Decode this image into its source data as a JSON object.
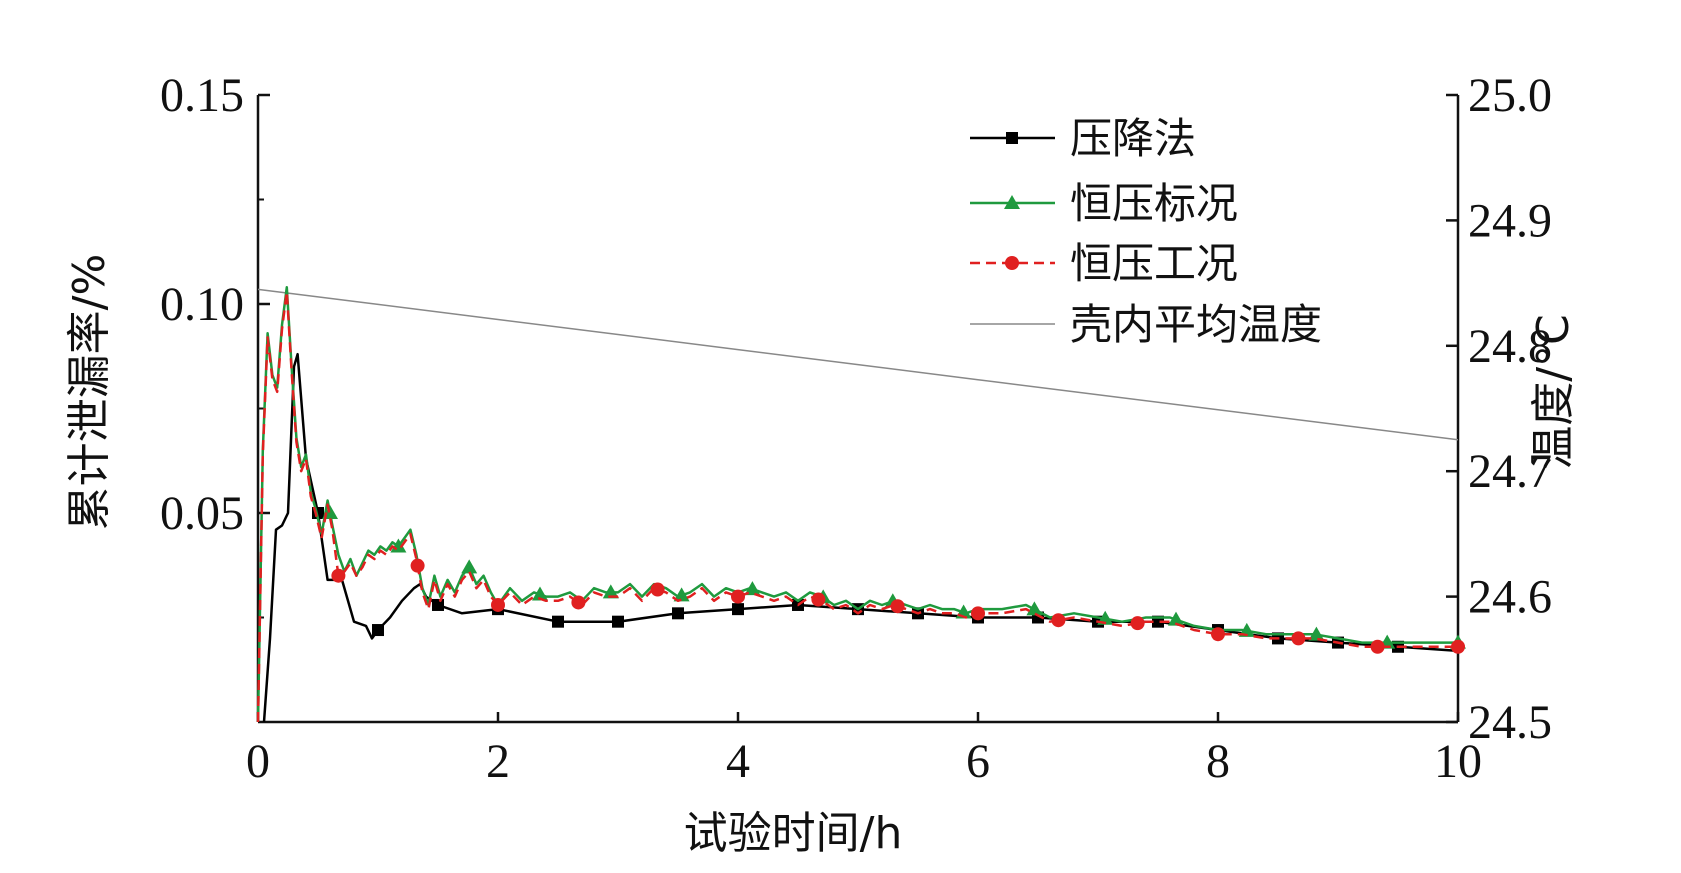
{
  "chart_data": {
    "type": "line",
    "xlabel": "试验时间/h",
    "ylabel_left": "累计泄漏率/%",
    "ylabel_right": "温度/°C",
    "xlim": [
      0,
      10
    ],
    "ylim_left": [
      0,
      0.15
    ],
    "ylim_right": [
      24.5,
      25.0
    ],
    "x_ticks": [
      "0",
      "2",
      "4",
      "6",
      "8",
      "10"
    ],
    "y_ticks_left": [
      "0.05",
      "0.10",
      "0.15"
    ],
    "y_ticks_right": [
      "24.5",
      "24.6",
      "24.7",
      "24.8",
      "24.9",
      "25.0"
    ],
    "legend_position": "top-right",
    "series": [
      {
        "name": "压降法",
        "axis": "left",
        "color": "#000000",
        "marker": "square",
        "dash": "solid",
        "x": [
          0.05,
          0.1,
          0.15,
          0.2,
          0.25,
          0.3,
          0.33,
          0.4,
          0.5,
          0.58,
          0.7,
          0.8,
          0.9,
          0.95,
          1.0,
          1.1,
          1.2,
          1.3,
          1.35,
          1.4,
          1.5,
          1.7,
          2.0,
          2.5,
          3.0,
          3.5,
          4.0,
          4.5,
          5.0,
          5.5,
          6.0,
          6.5,
          7.0,
          7.5,
          8.0,
          8.5,
          9.0,
          9.5,
          10.0
        ],
        "y": [
          0.0,
          0.02,
          0.046,
          0.047,
          0.05,
          0.085,
          0.088,
          0.063,
          0.05,
          0.034,
          0.034,
          0.024,
          0.023,
          0.02,
          0.022,
          0.025,
          0.029,
          0.032,
          0.033,
          0.03,
          0.028,
          0.026,
          0.027,
          0.024,
          0.024,
          0.026,
          0.027,
          0.028,
          0.027,
          0.026,
          0.025,
          0.025,
          0.024,
          0.024,
          0.022,
          0.02,
          0.019,
          0.018,
          0.017
        ],
        "marker_x": [
          0.5,
          1.0,
          1.5,
          2.0,
          2.5,
          3.0,
          3.5,
          4.0,
          4.5,
          5.0,
          5.5,
          6.0,
          6.5,
          7.0,
          7.5,
          8.0,
          8.5,
          9.0,
          9.5
        ]
      },
      {
        "name": "恒压标况",
        "axis": "left",
        "color": "#1f9a3e",
        "marker": "triangle",
        "dash": "solid",
        "x": [
          0.0,
          0.04,
          0.08,
          0.12,
          0.16,
          0.2,
          0.24,
          0.28,
          0.32,
          0.36,
          0.4,
          0.44,
          0.48,
          0.53,
          0.58,
          0.62,
          0.67,
          0.72,
          0.77,
          0.82,
          0.87,
          0.92,
          0.97,
          1.02,
          1.07,
          1.12,
          1.17,
          1.22,
          1.27,
          1.32,
          1.37,
          1.42,
          1.47,
          1.52,
          1.58,
          1.64,
          1.7,
          1.76,
          1.82,
          1.88,
          1.94,
          2.0,
          2.1,
          2.2,
          2.3,
          2.4,
          2.5,
          2.6,
          2.7,
          2.8,
          2.9,
          3.0,
          3.1,
          3.2,
          3.3,
          3.4,
          3.5,
          3.6,
          3.7,
          3.8,
          3.9,
          4.0,
          4.1,
          4.2,
          4.3,
          4.4,
          4.5,
          4.6,
          4.7,
          4.8,
          4.9,
          5.0,
          5.1,
          5.2,
          5.3,
          5.4,
          5.5,
          5.6,
          5.7,
          5.8,
          5.9,
          6.0,
          6.2,
          6.4,
          6.6,
          6.8,
          7.0,
          7.2,
          7.4,
          7.6,
          7.8,
          8.0,
          8.2,
          8.4,
          8.6,
          8.8,
          9.0,
          9.2,
          9.4,
          9.6,
          9.8,
          10.0
        ],
        "y": [
          0.0,
          0.065,
          0.093,
          0.083,
          0.08,
          0.095,
          0.104,
          0.085,
          0.068,
          0.061,
          0.064,
          0.055,
          0.051,
          0.045,
          0.053,
          0.047,
          0.04,
          0.036,
          0.039,
          0.035,
          0.038,
          0.041,
          0.04,
          0.042,
          0.041,
          0.043,
          0.042,
          0.044,
          0.046,
          0.04,
          0.032,
          0.028,
          0.035,
          0.03,
          0.034,
          0.031,
          0.035,
          0.037,
          0.033,
          0.035,
          0.031,
          0.028,
          0.032,
          0.029,
          0.031,
          0.03,
          0.03,
          0.031,
          0.029,
          0.032,
          0.031,
          0.031,
          0.033,
          0.03,
          0.033,
          0.032,
          0.03,
          0.031,
          0.033,
          0.03,
          0.032,
          0.031,
          0.032,
          0.031,
          0.03,
          0.031,
          0.029,
          0.031,
          0.03,
          0.028,
          0.029,
          0.027,
          0.029,
          0.028,
          0.029,
          0.028,
          0.027,
          0.028,
          0.027,
          0.027,
          0.026,
          0.027,
          0.027,
          0.028,
          0.025,
          0.026,
          0.025,
          0.024,
          0.025,
          0.025,
          0.023,
          0.022,
          0.022,
          0.021,
          0.021,
          0.021,
          0.02,
          0.019,
          0.019,
          0.019,
          0.019,
          0.019
        ],
        "marker_x": [
          0.6,
          1.17,
          1.76,
          2.35,
          2.94,
          3.53,
          4.12,
          4.71,
          5.29,
          5.88,
          6.47,
          7.06,
          7.65,
          8.24,
          8.82,
          9.41,
          10.0
        ]
      },
      {
        "name": "恒压工况",
        "axis": "left",
        "color": "#e02020",
        "marker": "circle",
        "dash": "dashed",
        "x": [
          0.0,
          0.04,
          0.08,
          0.12,
          0.16,
          0.2,
          0.24,
          0.28,
          0.32,
          0.36,
          0.4,
          0.44,
          0.48,
          0.53,
          0.58,
          0.62,
          0.67,
          0.72,
          0.77,
          0.82,
          0.87,
          0.92,
          0.97,
          1.02,
          1.07,
          1.12,
          1.17,
          1.22,
          1.27,
          1.32,
          1.37,
          1.42,
          1.47,
          1.52,
          1.58,
          1.64,
          1.7,
          1.76,
          1.82,
          1.88,
          1.94,
          2.0,
          2.1,
          2.2,
          2.3,
          2.4,
          2.5,
          2.6,
          2.7,
          2.8,
          2.9,
          3.0,
          3.1,
          3.2,
          3.3,
          3.4,
          3.5,
          3.6,
          3.7,
          3.8,
          3.9,
          4.0,
          4.1,
          4.2,
          4.3,
          4.4,
          4.5,
          4.6,
          4.7,
          4.8,
          4.9,
          5.0,
          5.1,
          5.2,
          5.3,
          5.4,
          5.5,
          5.6,
          5.7,
          5.8,
          5.9,
          6.0,
          6.2,
          6.4,
          6.6,
          6.8,
          7.0,
          7.2,
          7.4,
          7.6,
          7.8,
          8.0,
          8.2,
          8.4,
          8.6,
          8.8,
          9.0,
          9.2,
          9.4,
          9.6,
          9.8,
          10.0
        ],
        "y": [
          0.0,
          0.064,
          0.092,
          0.082,
          0.079,
          0.094,
          0.103,
          0.084,
          0.067,
          0.06,
          0.063,
          0.054,
          0.05,
          0.044,
          0.052,
          0.046,
          0.035,
          0.036,
          0.038,
          0.035,
          0.037,
          0.04,
          0.039,
          0.041,
          0.04,
          0.042,
          0.041,
          0.043,
          0.045,
          0.039,
          0.031,
          0.027,
          0.034,
          0.029,
          0.033,
          0.03,
          0.034,
          0.036,
          0.032,
          0.034,
          0.03,
          0.028,
          0.031,
          0.028,
          0.03,
          0.029,
          0.029,
          0.03,
          0.028,
          0.031,
          0.03,
          0.03,
          0.032,
          0.029,
          0.032,
          0.031,
          0.029,
          0.03,
          0.032,
          0.029,
          0.031,
          0.03,
          0.031,
          0.03,
          0.029,
          0.03,
          0.028,
          0.03,
          0.029,
          0.027,
          0.028,
          0.026,
          0.028,
          0.027,
          0.028,
          0.027,
          0.026,
          0.027,
          0.026,
          0.026,
          0.025,
          0.026,
          0.026,
          0.027,
          0.024,
          0.025,
          0.024,
          0.023,
          0.024,
          0.024,
          0.022,
          0.021,
          0.021,
          0.02,
          0.02,
          0.02,
          0.019,
          0.018,
          0.018,
          0.018,
          0.018,
          0.018
        ],
        "marker_x": [
          0.67,
          1.33,
          2.0,
          2.67,
          3.33,
          4.0,
          4.67,
          5.33,
          6.0,
          6.67,
          7.33,
          8.0,
          8.67,
          9.33,
          10.0
        ]
      },
      {
        "name": "壳内平均温度",
        "axis": "right",
        "color": "#888888",
        "marker": "none",
        "dash": "solid",
        "x": [
          0,
          1,
          2,
          3,
          4,
          5,
          6,
          7,
          8,
          9,
          10
        ],
        "y": [
          24.845,
          24.833,
          24.821,
          24.809,
          24.797,
          24.785,
          24.773,
          24.761,
          24.749,
          24.737,
          24.725
        ]
      }
    ]
  }
}
